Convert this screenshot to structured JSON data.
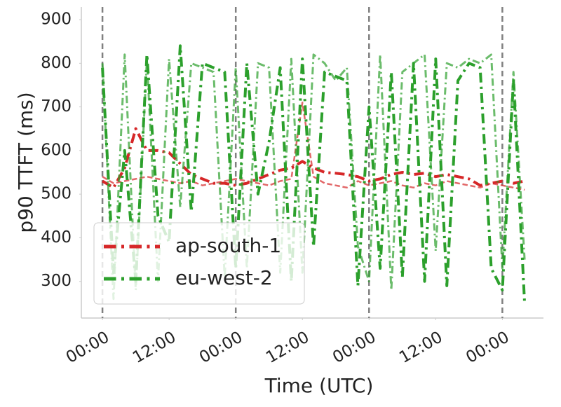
{
  "chart_data": {
    "type": "line",
    "x_label": "Time (UTC)",
    "y_label": "p90 TTFT (ms)",
    "x": [
      0,
      2,
      4,
      6,
      8,
      10,
      12,
      14,
      16,
      18,
      20,
      22,
      24,
      26,
      28,
      30,
      32,
      34,
      36,
      38,
      40,
      42,
      44,
      46,
      48,
      50,
      52,
      54,
      56,
      58,
      60,
      62,
      64,
      66,
      68,
      70,
      72,
      74,
      76
    ],
    "series": [
      {
        "name": "ap-south-1",
        "color": "#d62728",
        "linewidth": 4,
        "alpha": 1,
        "linestyle": "dashdot",
        "values": [
          530,
          515,
          560,
          650,
          600,
          600,
          595,
          570,
          545,
          535,
          525,
          525,
          520,
          525,
          535,
          545,
          555,
          560,
          575,
          560,
          550,
          548,
          545,
          540,
          530,
          535,
          545,
          550,
          545,
          548,
          540,
          545,
          540,
          535,
          520,
          525,
          530,
          525,
          530
        ]
      },
      {
        "color": "#d62728",
        "linewidth": 2.5,
        "alpha": 0.7,
        "linestyle": "dashed",
        "values": [
          540,
          525,
          530,
          535,
          540,
          535,
          530,
          525,
          530,
          520,
          525,
          530,
          535,
          530,
          525,
          520,
          530,
          535,
          710,
          540,
          525,
          520,
          515,
          530,
          520,
          525,
          530,
          520,
          515,
          525,
          520,
          530,
          525,
          520,
          515,
          525,
          520,
          515,
          510
        ]
      },
      {
        "name": "eu-west-2",
        "color": "#2ca02c",
        "linewidth": 4,
        "alpha": 1,
        "linestyle": "dashdot",
        "values": [
          790,
          320,
          600,
          300,
          820,
          450,
          390,
          840,
          460,
          800,
          790,
          780,
          330,
          800,
          500,
          620,
          790,
          300,
          810,
          380,
          780,
          770,
          760,
          290,
          700,
          330,
          780,
          310,
          800,
          300,
          810,
          290,
          760,
          800,
          790,
          330,
          280,
          760,
          250
        ]
      },
      {
        "color": "#2ca02c",
        "linewidth": 3,
        "alpha": 0.7,
        "linestyle": "dashdot",
        "values": [
          800,
          260,
          820,
          280,
          810,
          300,
          810,
          470,
          800,
          790,
          780,
          310,
          790,
          330,
          800,
          790,
          320,
          810,
          320,
          820,
          800,
          760,
          790,
          380,
          300,
          820,
          280,
          780,
          800,
          820,
          370,
          800,
          790,
          810,
          800,
          820,
          330,
          780,
          350
        ]
      }
    ],
    "xlim": [
      -3.8,
      79.4
    ],
    "xticks": [
      {
        "value": 0,
        "label": "00:00"
      },
      {
        "value": 12,
        "label": "12:00"
      },
      {
        "value": 24,
        "label": "00:00"
      },
      {
        "value": 36,
        "label": "12:00"
      },
      {
        "value": 48,
        "label": "00:00"
      },
      {
        "value": 60,
        "label": "12:00"
      },
      {
        "value": 72,
        "label": "00:00"
      }
    ],
    "vlines": [
      0,
      24,
      48,
      72
    ],
    "ylim": [
      216,
      929
    ],
    "yticks": [
      300,
      400,
      500,
      600,
      700,
      800,
      900
    ],
    "grid": false,
    "legend": "lower left"
  }
}
